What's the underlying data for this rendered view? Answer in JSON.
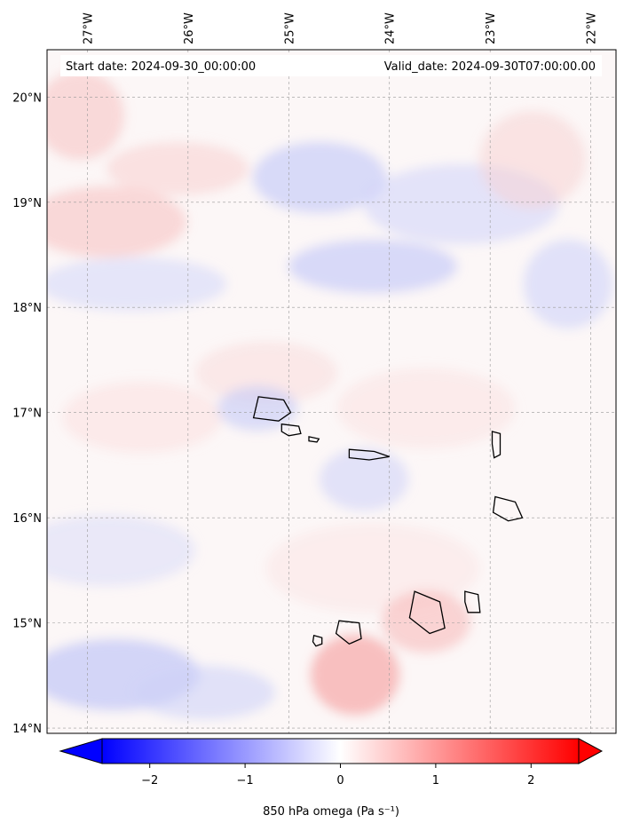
{
  "header": {
    "start_date": "Start date: 2024-09-30_00:00:00",
    "valid_date": "Valid_date: 2024-09-30T07:00:00.00"
  },
  "map": {
    "lon_range": [
      -27.4,
      -21.75
    ],
    "lat_range": [
      13.95,
      20.45
    ],
    "lon_ticks": [
      {
        "value": -27,
        "label": "27°W"
      },
      {
        "value": -26,
        "label": "26°W"
      },
      {
        "value": -25,
        "label": "25°W"
      },
      {
        "value": -24,
        "label": "24°W"
      },
      {
        "value": -23,
        "label": "23°W"
      },
      {
        "value": -22,
        "label": "22°W"
      }
    ],
    "lat_ticks": [
      {
        "value": 14,
        "label": "14°N"
      },
      {
        "value": 15,
        "label": "15°N"
      },
      {
        "value": 16,
        "label": "16°N"
      },
      {
        "value": 17,
        "label": "17°N"
      },
      {
        "value": 18,
        "label": "18°N"
      },
      {
        "value": 19,
        "label": "19°N"
      },
      {
        "value": 20,
        "label": "20°N"
      }
    ],
    "gridlines": true,
    "islands": [
      {
        "name": "Santo Antão",
        "coords": [
          [
            -25.3,
            17.15
          ],
          [
            -25.05,
            17.12
          ],
          [
            -24.98,
            17.0
          ],
          [
            -25.1,
            16.92
          ],
          [
            -25.35,
            16.95
          ]
        ]
      },
      {
        "name": "São Vicente",
        "coords": [
          [
            -25.07,
            16.89
          ],
          [
            -24.9,
            16.87
          ],
          [
            -24.88,
            16.8
          ],
          0,
          [
            -25.0,
            16.78
          ],
          [
            -25.07,
            16.82
          ]
        ]
      },
      {
        "name": "Santa Luzia",
        "coords": [
          [
            -24.8,
            16.77
          ],
          [
            -24.7,
            16.75
          ],
          [
            -24.72,
            16.72
          ],
          [
            -24.8,
            16.73
          ]
        ]
      },
      {
        "name": "São Nicolau",
        "coords": [
          [
            -24.4,
            16.65
          ],
          [
            -24.15,
            16.63
          ],
          [
            -24.0,
            16.58
          ],
          [
            -24.2,
            16.55
          ],
          [
            -24.4,
            16.57
          ]
        ]
      },
      {
        "name": "Sal",
        "coords": [
          [
            -22.98,
            16.82
          ],
          [
            -22.9,
            16.8
          ],
          [
            -22.9,
            16.6
          ],
          [
            -22.96,
            16.57
          ],
          [
            -22.98,
            16.7
          ]
        ]
      },
      {
        "name": "Boa Vista",
        "coords": [
          [
            -22.95,
            16.2
          ],
          [
            -22.75,
            16.15
          ],
          [
            -22.68,
            16.0
          ],
          [
            -22.82,
            15.97
          ],
          [
            -22.97,
            16.05
          ]
        ]
      },
      {
        "name": "Maio",
        "coords": [
          [
            -23.25,
            15.3
          ],
          [
            -23.12,
            15.27
          ],
          [
            -23.1,
            15.1
          ],
          [
            -23.22,
            15.1
          ],
          [
            -23.25,
            15.2
          ]
        ]
      },
      {
        "name": "Santiago",
        "coords": [
          [
            -23.75,
            15.3
          ],
          [
            -23.5,
            15.2
          ],
          [
            -23.45,
            14.95
          ],
          [
            -23.6,
            14.9
          ],
          [
            -23.8,
            15.05
          ]
        ]
      },
      {
        "name": "Fogo",
        "coords": [
          [
            -24.5,
            15.02
          ],
          [
            -24.3,
            15.0
          ],
          [
            -24.28,
            14.85
          ],
          [
            -24.4,
            14.8
          ],
          [
            -24.53,
            14.9
          ]
        ]
      },
      {
        "name": "Brava",
        "coords": [
          [
            -24.75,
            14.88
          ],
          [
            -24.67,
            14.86
          ],
          [
            -24.67,
            14.8
          ],
          0,
          [
            -24.73,
            14.78
          ],
          [
            -24.76,
            14.82
          ]
        ]
      }
    ]
  },
  "colorbar": {
    "ticks": [
      {
        "value": -2,
        "label": "−2"
      },
      {
        "value": -1,
        "label": "−1"
      },
      {
        "value": 0,
        "label": "0"
      },
      {
        "value": 1,
        "label": "1"
      },
      {
        "value": 2,
        "label": "2"
      }
    ],
    "range": [
      -2.5,
      2.5
    ],
    "label": "850 hPa omega (Pa s⁻¹)",
    "negative_color": "#0000ff",
    "zero_color": "#ffffff",
    "positive_color": "#ff0000"
  }
}
